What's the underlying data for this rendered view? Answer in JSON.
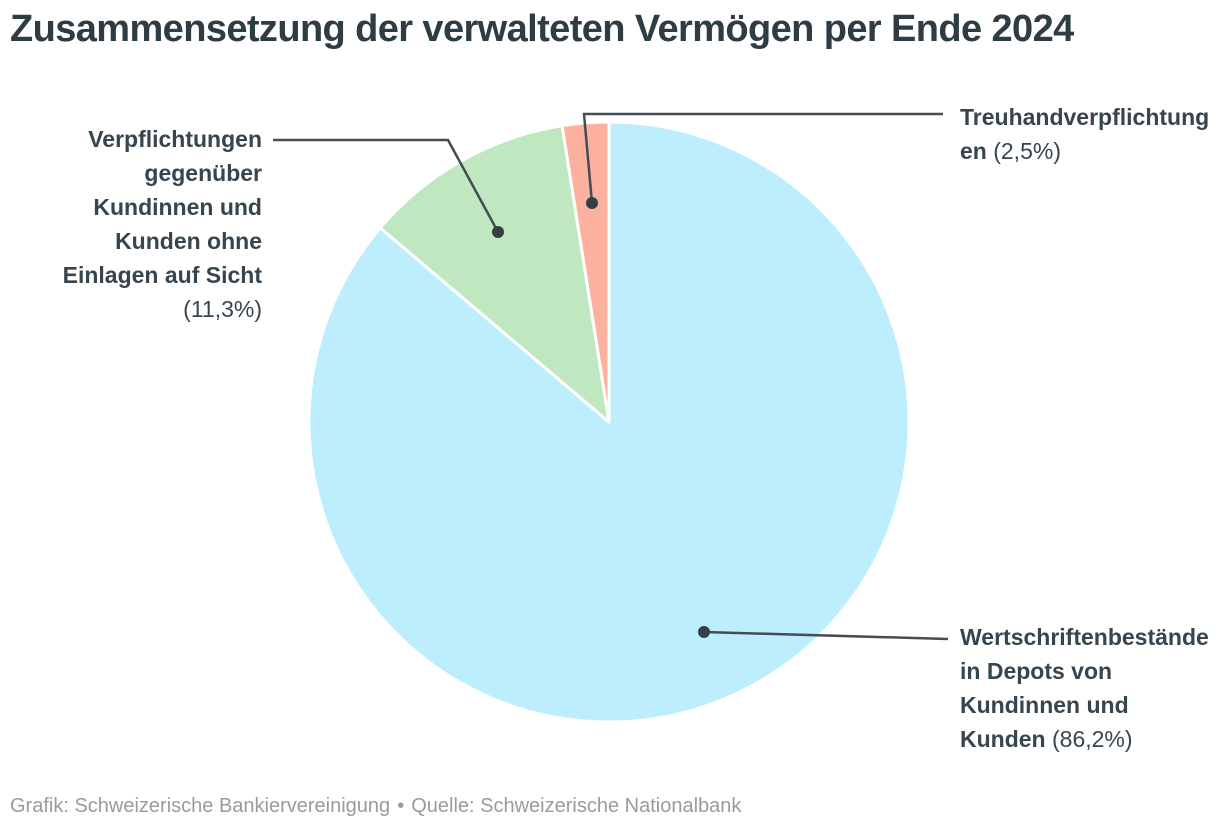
{
  "header": {
    "title": "Zusammensetzung der verwalteten Vermögen per Ende 2024"
  },
  "chart_data": {
    "type": "pie",
    "title": "Zusammensetzung der verwalteten Vermögen per Ende 2024",
    "unit": "%",
    "start_angle_deg": -90,
    "direction": "clockwise",
    "legend_position": "callout-labels",
    "slices": [
      {
        "id": "wertschriftenbestaende",
        "label": "Wertschriftenbestände in Depots von Kundinnen und Kunden",
        "value": 86.2,
        "value_label": "(86,2%)",
        "color": "#bceefe"
      },
      {
        "id": "verpflichtungen-ohne-einlagen-auf-sicht",
        "label": "Verpflichtungen gegenüber Kundinnen und Kunden ohne Einlagen auf Sicht",
        "value": 11.3,
        "value_label": "(11,3%)",
        "color": "#bfe8c0"
      },
      {
        "id": "treuhandverpflichtungen",
        "label": "Treuhandverpflichtungen",
        "value": 2.5,
        "value_label": "(2,5%)",
        "color": "#fcb19e"
      }
    ]
  },
  "footer": {
    "credit": "Grafik: Schweizerische Bankiervereinigung",
    "separator": "•",
    "source": "Quelle: Schweizerische Nationalbank"
  },
  "colors": {
    "background": "#ffffff",
    "title_text": "#2e3c44",
    "label_text": "#36454e",
    "callout_line": "#454d53",
    "callout_dot": "#353f45",
    "slice_gap_stroke": "#ffffff",
    "footer_text": "#9b9b9b"
  }
}
